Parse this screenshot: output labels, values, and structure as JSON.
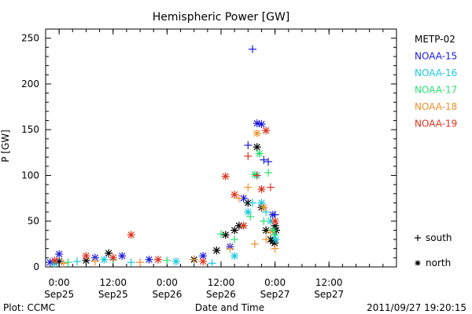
{
  "chart_data": {
    "type": "scatter",
    "title": "Hemispheric Power [GW]",
    "xlabel": "Date and Time",
    "ylabel": "P [GW]",
    "ylim": [
      0,
      260
    ],
    "xlim": [
      "2011-09-24 21:00",
      "2011-09-28 03:00"
    ],
    "yticks": [
      0,
      50,
      100,
      150,
      200,
      250
    ],
    "xticks": [
      {
        "time": "2011-09-25 00:00",
        "line1": "0:00",
        "line2": "Sep25"
      },
      {
        "time": "2011-09-25 12:00",
        "line1": "12:00",
        "line2": "Sep25"
      },
      {
        "time": "2011-09-26 00:00",
        "line1": "0:00",
        "line2": "Sep26"
      },
      {
        "time": "2011-09-26 12:00",
        "line1": "12:00",
        "line2": "Sep26"
      },
      {
        "time": "2011-09-27 00:00",
        "line1": "0:00",
        "line2": "Sep27"
      },
      {
        "time": "2011-09-27 12:00",
        "line1": "12:00",
        "line2": "Sep27"
      }
    ],
    "marker_legend": [
      {
        "symbol": "+",
        "label": "south"
      },
      {
        "symbol": "*",
        "label": "north"
      }
    ],
    "series": [
      {
        "name": "METP-02",
        "color": "#000000",
        "points": [
          [
            "2011-09-25 00:00",
            6,
            "north"
          ],
          [
            "2011-09-25 06:00",
            7,
            "north"
          ],
          [
            "2011-09-25 11:00",
            15,
            "north"
          ],
          [
            "2011-09-26 06:00",
            8,
            "north"
          ],
          [
            "2011-09-26 11:00",
            18,
            "north"
          ],
          [
            "2011-09-26 13:00",
            35,
            "north"
          ],
          [
            "2011-09-26 15:00",
            40,
            "north"
          ],
          [
            "2011-09-26 16:00",
            45,
            "north"
          ],
          [
            "2011-09-26 18:00",
            70,
            "north"
          ],
          [
            "2011-09-26 20:00",
            131,
            "north"
          ],
          [
            "2011-09-26 21:00",
            65,
            "north"
          ],
          [
            "2011-09-26 22:00",
            40,
            "north"
          ],
          [
            "2011-09-26 23:00",
            30,
            "north"
          ],
          [
            "2011-09-26 23:30",
            28,
            "north"
          ],
          [
            "2011-09-26 23:55",
            26,
            "north"
          ],
          [
            "2011-09-27 00:00",
            45,
            "north"
          ],
          [
            "2011-09-27 00:15",
            40,
            "north"
          ]
        ]
      },
      {
        "name": "NOAA-15",
        "color": "#1a1ad8",
        "points": [
          [
            "2011-09-24 22:00",
            5,
            "north"
          ],
          [
            "2011-09-25 00:00",
            14,
            "north"
          ],
          [
            "2011-09-25 08:00",
            10,
            "north"
          ],
          [
            "2011-09-25 14:00",
            12,
            "north"
          ],
          [
            "2011-09-25 20:00",
            8,
            "north"
          ],
          [
            "2011-09-26 08:00",
            12,
            "north"
          ],
          [
            "2011-09-26 14:00",
            22,
            "north"
          ],
          [
            "2011-09-26 17:00",
            75,
            "north"
          ],
          [
            "2011-09-26 18:00",
            133,
            "south"
          ],
          [
            "2011-09-26 19:00",
            238,
            "south"
          ],
          [
            "2011-09-26 20:00",
            157,
            "north"
          ],
          [
            "2011-09-26 21:00",
            156,
            "north"
          ],
          [
            "2011-09-26 21:30",
            117,
            "south"
          ],
          [
            "2011-09-26 22:30",
            115,
            "south"
          ],
          [
            "2011-09-26 23:30",
            57,
            "north"
          ],
          [
            "2011-09-27 00:00",
            57,
            "south"
          ]
        ]
      },
      {
        "name": "NOAA-16",
        "color": "#18c8e0",
        "points": [
          [
            "2011-09-24 23:00",
            4,
            "north"
          ],
          [
            "2011-09-25 04:00",
            6,
            "south"
          ],
          [
            "2011-09-25 10:00",
            8,
            "north"
          ],
          [
            "2011-09-25 16:00",
            5,
            "south"
          ],
          [
            "2011-09-26 02:00",
            6,
            "north"
          ],
          [
            "2011-09-26 10:00",
            4,
            "south"
          ],
          [
            "2011-09-26 15:00",
            12,
            "north"
          ],
          [
            "2011-09-26 18:00",
            60,
            "north"
          ],
          [
            "2011-09-26 19:00",
            70,
            "south"
          ],
          [
            "2011-09-26 20:00",
            100,
            "north"
          ],
          [
            "2011-09-26 21:00",
            70,
            "north"
          ],
          [
            "2011-09-26 22:00",
            60,
            "south"
          ],
          [
            "2011-09-26 23:00",
            50,
            "north"
          ],
          [
            "2011-09-26 23:50",
            35,
            "south"
          ],
          [
            "2011-09-27 00:10",
            30,
            "north"
          ]
        ]
      },
      {
        "name": "NOAA-17",
        "color": "#28e070",
        "points": [
          [
            "2011-09-25 02:00",
            5,
            "south"
          ],
          [
            "2011-09-25 12:00",
            8,
            "south"
          ],
          [
            "2011-09-26 00:00",
            7,
            "south"
          ],
          [
            "2011-09-26 12:00",
            36,
            "south"
          ],
          [
            "2011-09-26 15:00",
            30,
            "south"
          ],
          [
            "2011-09-26 17:00",
            45,
            "north"
          ],
          [
            "2011-09-26 18:30",
            55,
            "south"
          ],
          [
            "2011-09-26 19:30",
            101,
            "north"
          ],
          [
            "2011-09-26 20:30",
            124,
            "north"
          ],
          [
            "2011-09-26 21:30",
            50,
            "south"
          ],
          [
            "2011-09-26 22:30",
            103,
            "south"
          ],
          [
            "2011-09-26 23:30",
            40,
            "north"
          ],
          [
            "2011-09-27 00:00",
            35,
            "south"
          ]
        ]
      },
      {
        "name": "NOAA-18",
        "color": "#f0902a",
        "points": [
          [
            "2011-09-25 01:00",
            4,
            "south"
          ],
          [
            "2011-09-25 08:00",
            6,
            "south"
          ],
          [
            "2011-09-25 18:00",
            5,
            "south"
          ],
          [
            "2011-09-26 06:00",
            8,
            "south"
          ],
          [
            "2011-09-26 14:00",
            20,
            "south"
          ],
          [
            "2011-09-26 16:00",
            75,
            "south"
          ],
          [
            "2011-09-26 18:00",
            87,
            "south"
          ],
          [
            "2011-09-26 19:30",
            25,
            "south"
          ],
          [
            "2011-09-26 20:00",
            146,
            "north"
          ],
          [
            "2011-09-26 21:30",
            65,
            "north"
          ],
          [
            "2011-09-26 22:00",
            30,
            "south"
          ],
          [
            "2011-09-26 23:00",
            38,
            "south"
          ],
          [
            "2011-09-27 00:00",
            20,
            "south"
          ]
        ]
      },
      {
        "name": "NOAA-19",
        "color": "#e0301c",
        "points": [
          [
            "2011-09-24 23:00",
            7,
            "north"
          ],
          [
            "2011-09-25 06:00",
            12,
            "north"
          ],
          [
            "2011-09-25 12:00",
            10,
            "north"
          ],
          [
            "2011-09-25 16:00",
            35,
            "north"
          ],
          [
            "2011-09-25 22:00",
            8,
            "north"
          ],
          [
            "2011-09-26 08:00",
            6,
            "north"
          ],
          [
            "2011-09-26 13:00",
            99,
            "north"
          ],
          [
            "2011-09-26 15:00",
            79,
            "north"
          ],
          [
            "2011-09-26 17:00",
            45,
            "north"
          ],
          [
            "2011-09-26 18:00",
            121,
            "south"
          ],
          [
            "2011-09-26 20:00",
            100,
            "south"
          ],
          [
            "2011-09-26 21:00",
            85,
            "north"
          ],
          [
            "2011-09-26 22:00",
            149,
            "north"
          ],
          [
            "2011-09-26 23:00",
            87,
            "south"
          ],
          [
            "2011-09-27 00:00",
            50,
            "north"
          ]
        ]
      }
    ]
  },
  "footer": {
    "left": "Plot: CCMC",
    "right": "2011/09/27 19:20:15"
  }
}
